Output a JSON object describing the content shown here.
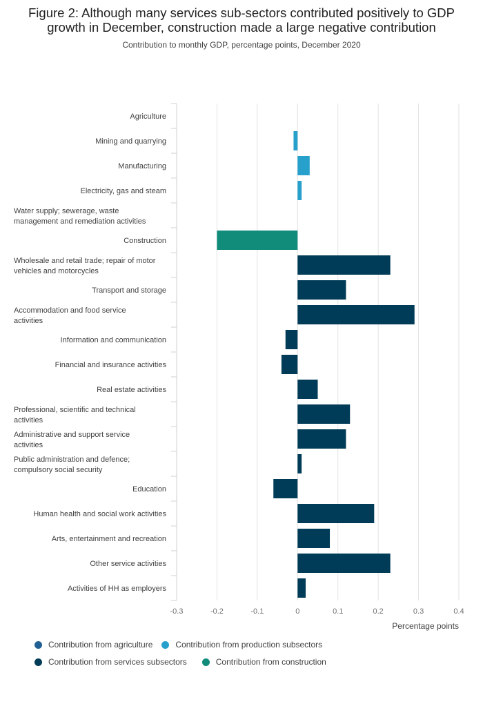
{
  "title_line1": "Figure 2: Although many services sub-sectors contributed positively to GDP",
  "title_line2": "growth in December, construction made a large negative contribution",
  "subtitle": "Contribution to monthly GDP, percentage points, December 2020",
  "colors": {
    "agriculture": "#206095",
    "production": "#27a0cc",
    "services": "#003c57",
    "construction": "#118c7b"
  },
  "chart_data": {
    "type": "bar",
    "orientation": "horizontal",
    "title": "Figure 2: Although many services sub-sectors contributed positively to GDP growth in December, construction made a large negative contribution",
    "subtitle": "Contribution to monthly GDP, percentage points, December 2020",
    "xlabel": "Percentage points",
    "ylabel": "",
    "xlim": [
      -0.3,
      0.4
    ],
    "xticks": [
      "-0.3",
      "-0.2",
      "-0.1",
      "0",
      "0.1",
      "0.2",
      "0.3",
      "0.4"
    ],
    "grid": true,
    "legend_position": "bottom",
    "categories": [
      {
        "label": [
          "Agriculture"
        ],
        "value": 0.0,
        "group": "agriculture"
      },
      {
        "label": [
          "Mining and quarrying"
        ],
        "value": -0.01,
        "group": "production"
      },
      {
        "label": [
          "Manufacturing"
        ],
        "value": 0.03,
        "group": "production"
      },
      {
        "label": [
          "Electricity, gas and steam"
        ],
        "value": 0.01,
        "group": "production"
      },
      {
        "label": [
          "Water supply; sewerage, waste",
          "management  and remediation activities"
        ],
        "value": 0.0,
        "group": "production"
      },
      {
        "label": [
          "Construction"
        ],
        "value": -0.2,
        "group": "construction"
      },
      {
        "label": [
          "Wholesale and retail trade; repair of motor",
          "vehicles and motorcycles"
        ],
        "value": 0.23,
        "group": "services"
      },
      {
        "label": [
          "Transport and storage"
        ],
        "value": 0.12,
        "group": "services"
      },
      {
        "label": [
          "Accommodation and food service",
          "activities"
        ],
        "value": 0.29,
        "group": "services"
      },
      {
        "label": [
          "Information and communication"
        ],
        "value": -0.03,
        "group": "services"
      },
      {
        "label": [
          "Financial and insurance activities"
        ],
        "value": -0.04,
        "group": "services"
      },
      {
        "label": [
          "Real estate activities"
        ],
        "value": 0.05,
        "group": "services"
      },
      {
        "label": [
          "Professional, scientific and technical",
          "activities"
        ],
        "value": 0.13,
        "group": "services"
      },
      {
        "label": [
          "Administrative and support service",
          "activities"
        ],
        "value": 0.12,
        "group": "services"
      },
      {
        "label": [
          "Public administration and defence;",
          "compulsory social security"
        ],
        "value": 0.01,
        "group": "services"
      },
      {
        "label": [
          "Education"
        ],
        "value": -0.06,
        "group": "services"
      },
      {
        "label": [
          "Human health and social work activities"
        ],
        "value": 0.19,
        "group": "services"
      },
      {
        "label": [
          "Arts, entertainment and recreation"
        ],
        "value": 0.08,
        "group": "services"
      },
      {
        "label": [
          "Other service activities"
        ],
        "value": 0.23,
        "group": "services"
      },
      {
        "label": [
          "Activities of HH as employers"
        ],
        "value": 0.02,
        "group": "services"
      }
    ],
    "legend": [
      {
        "key": "agriculture",
        "name": "Contribution from agriculture"
      },
      {
        "key": "production",
        "name": "Contribution from production subsectors"
      },
      {
        "key": "services",
        "name": "Contribution from services subsectors"
      },
      {
        "key": "construction",
        "name": "Contribution from construction"
      }
    ]
  }
}
